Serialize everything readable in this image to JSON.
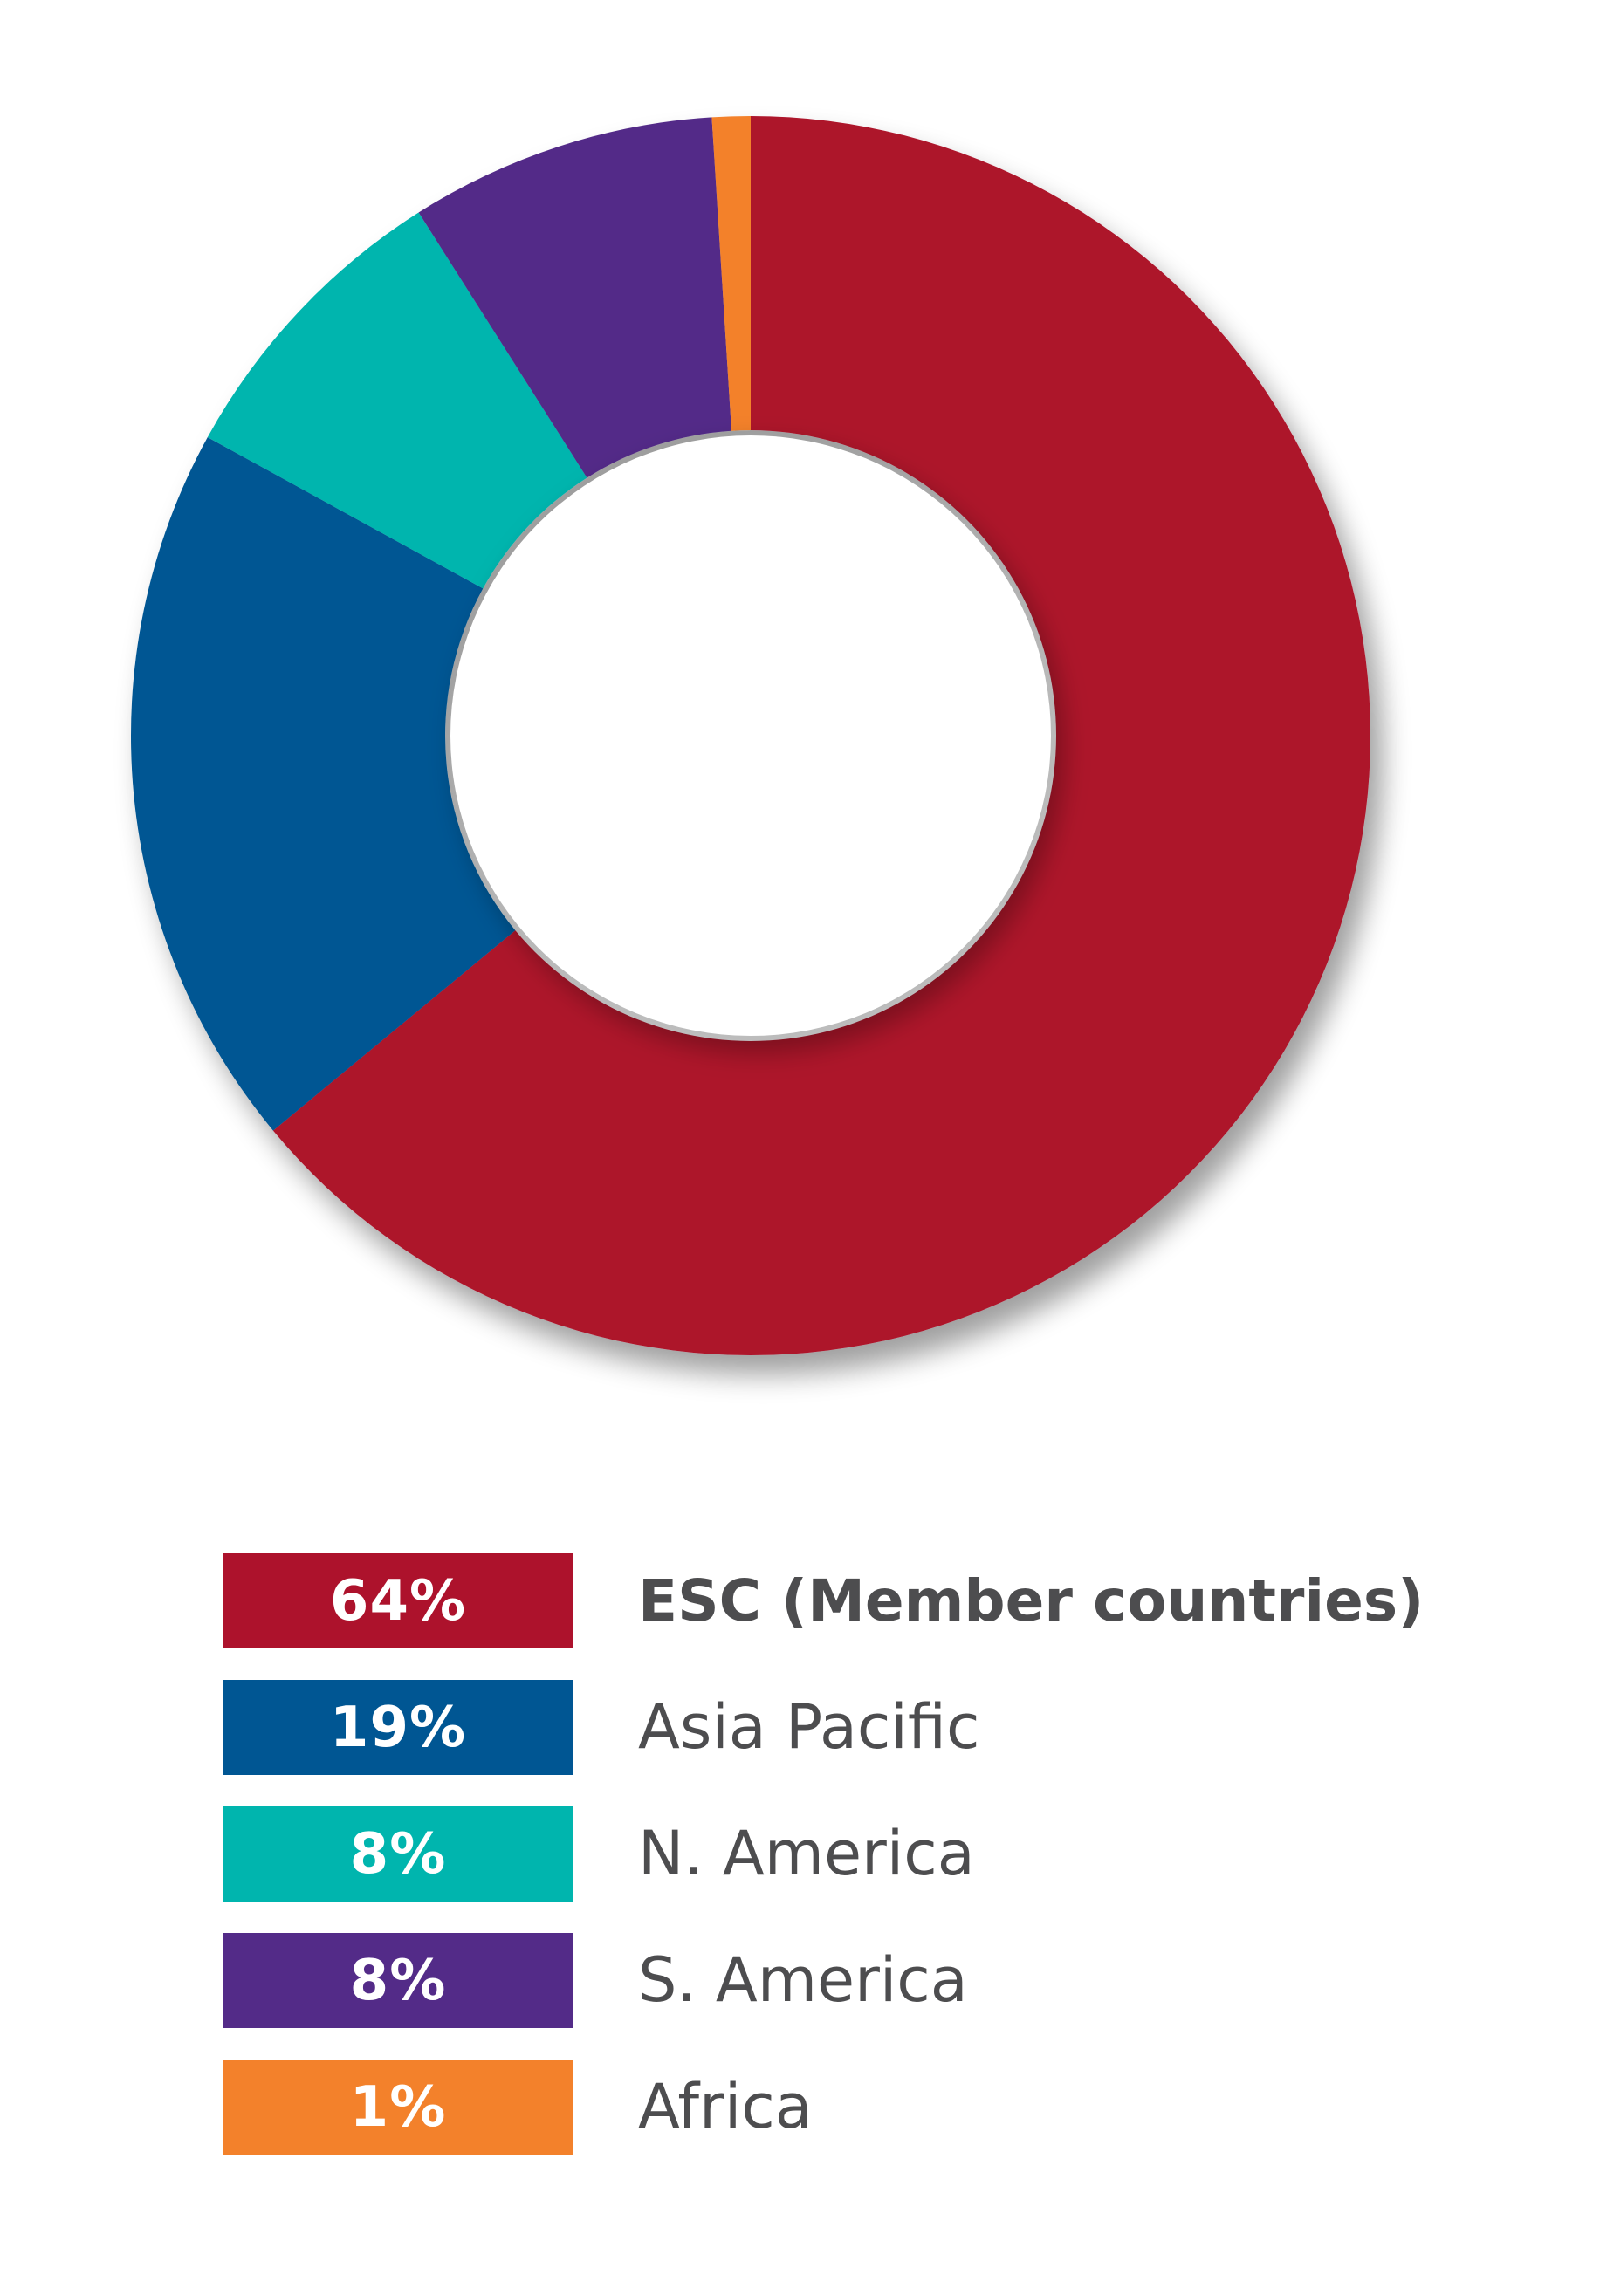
{
  "chart_data": {
    "type": "pie",
    "donut": true,
    "categories": [
      "ESC (Member countries)",
      "Asia Pacific",
      "N. America",
      "S. America",
      "Africa"
    ],
    "values": [
      64,
      19,
      8,
      8,
      1
    ],
    "value_labels": [
      "64%",
      "19%",
      "8%",
      "8%",
      "1%"
    ],
    "colors": [
      "#ad122c",
      "#005693",
      "#00b5ae",
      "#532b88",
      "#f3812b"
    ],
    "legend_placement": "bottom",
    "legend_bold_first": true
  }
}
